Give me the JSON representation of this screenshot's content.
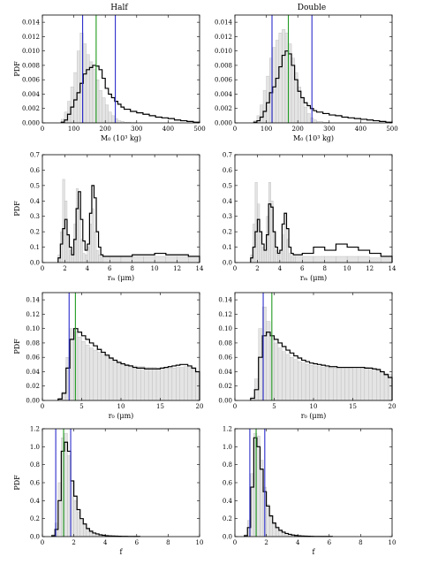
{
  "columns": [
    "Half",
    "Double"
  ],
  "colors": {
    "hist_fill": "#e4e4e4",
    "hist_edge": "#b9b9b9",
    "step": "#000000",
    "blue": "#2b2bcc",
    "green": "#1f9a1f"
  },
  "chart_data": [
    {
      "type": "histogram",
      "column": "Half",
      "ylabel": "PDF",
      "xlabel": "M₀ (10³ kg)",
      "xlim": [
        0,
        500
      ],
      "ylim": [
        0,
        0.015
      ],
      "xticks": [
        "0",
        "100",
        "200",
        "300",
        "400",
        "500"
      ],
      "yticks": [
        "0.000",
        "0.002",
        "0.004",
        "0.006",
        "0.008",
        "0.010",
        "0.012",
        "0.014"
      ],
      "bins": [
        60,
        70,
        80,
        90,
        100,
        110,
        120,
        130,
        140,
        150,
        160,
        170,
        180,
        190,
        200,
        210,
        220,
        230,
        240,
        250,
        260,
        280,
        300,
        320,
        340,
        360,
        380,
        400,
        420,
        440,
        460,
        480,
        500
      ],
      "filled": [
        0.0005,
        0.0015,
        0.003,
        0.005,
        0.007,
        0.01,
        0.0125,
        0.011,
        0.0095,
        0.0085,
        0.0075,
        0.006,
        0.0045,
        0.0035,
        0.0025,
        0.0015,
        0.001,
        0.0006,
        0.0003,
        0.0002,
        0.0001,
        5e-05,
        0.0,
        0.0,
        0.0,
        0.0,
        0.0,
        0.0,
        0.0,
        0.0,
        0.0,
        0.0
      ],
      "step": [
        0.0001,
        0.0004,
        0.0012,
        0.0022,
        0.0032,
        0.0042,
        0.0055,
        0.0068,
        0.0074,
        0.0077,
        0.008,
        0.0079,
        0.0074,
        0.0062,
        0.0048,
        0.004,
        0.0035,
        0.003,
        0.0026,
        0.0022,
        0.0019,
        0.0016,
        0.0014,
        0.0012,
        0.001,
        0.0008,
        0.0007,
        0.0006,
        0.0004,
        0.0003,
        0.0002,
        0.0001
      ],
      "vlines": [
        {
          "x": 128,
          "color": "blue"
        },
        {
          "x": 171,
          "color": "green"
        },
        {
          "x": 232,
          "color": "blue"
        }
      ]
    },
    {
      "type": "histogram",
      "column": "Double",
      "ylabel": "",
      "xlabel": "M₀ (10³ kg)",
      "xlim": [
        0,
        500
      ],
      "ylim": [
        0,
        0.015
      ],
      "xticks": [
        "0",
        "100",
        "200",
        "300",
        "400",
        "500"
      ],
      "yticks": [
        "0.000",
        "0.002",
        "0.004",
        "0.006",
        "0.008",
        "0.010",
        "0.012",
        "0.014"
      ],
      "bins": [
        60,
        70,
        80,
        90,
        100,
        110,
        120,
        130,
        140,
        150,
        160,
        170,
        180,
        190,
        200,
        210,
        220,
        230,
        240,
        250,
        260,
        280,
        300,
        320,
        340,
        360,
        380,
        400,
        420,
        440,
        460,
        480,
        500
      ],
      "filled": [
        0.0003,
        0.001,
        0.0025,
        0.0045,
        0.0065,
        0.009,
        0.0105,
        0.0115,
        0.0125,
        0.013,
        0.0125,
        0.011,
        0.009,
        0.007,
        0.005,
        0.0035,
        0.0022,
        0.0013,
        0.0007,
        0.0004,
        0.0002,
        0.0001,
        0.0,
        0.0,
        0.0,
        0.0,
        0.0,
        0.0,
        0.0,
        0.0,
        0.0,
        0.0
      ],
      "step": [
        0.0001,
        0.0003,
        0.0008,
        0.0016,
        0.0028,
        0.0042,
        0.005,
        0.0062,
        0.0078,
        0.0094,
        0.01,
        0.0096,
        0.008,
        0.006,
        0.0044,
        0.0035,
        0.0028,
        0.0024,
        0.002,
        0.0017,
        0.0015,
        0.0013,
        0.0011,
        0.001,
        0.0008,
        0.0007,
        0.0006,
        0.0005,
        0.0004,
        0.0003,
        0.0002,
        0.0001
      ],
      "vlines": [
        {
          "x": 118,
          "color": "blue"
        },
        {
          "x": 170,
          "color": "green"
        },
        {
          "x": 245,
          "color": "blue"
        }
      ]
    },
    {
      "type": "histogram",
      "column": "Half",
      "ylabel": "PDF",
      "xlabel": "rₘ (μm)",
      "xlim": [
        0,
        14
      ],
      "ylim": [
        0,
        0.7
      ],
      "xticks": [
        "0",
        "2",
        "4",
        "6",
        "8",
        "10",
        "12",
        "14"
      ],
      "yticks": [
        "0.0",
        "0.1",
        "0.2",
        "0.3",
        "0.4",
        "0.5",
        "0.6",
        "0.7"
      ],
      "bins": [
        1.4,
        1.6,
        1.8,
        2.0,
        2.2,
        2.4,
        2.6,
        2.8,
        3.0,
        3.2,
        3.4,
        3.6,
        3.8,
        4.0,
        4.2,
        4.4,
        4.6,
        4.8,
        5.0,
        5.2,
        5.4,
        6.0,
        7.0,
        8.0,
        9.0,
        10.0,
        11.0,
        12.0,
        13.0,
        14.0
      ],
      "filled": [
        0.05,
        0.2,
        0.54,
        0.4,
        0.18,
        0.08,
        0.05,
        0.25,
        0.48,
        0.35,
        0.15,
        0.06,
        0.05,
        0.1,
        0.25,
        0.35,
        0.2,
        0.08,
        0.05,
        0.04,
        0.04,
        0.04,
        0.04,
        0.04,
        0.04,
        0.04,
        0.04,
        0.04,
        0.03
      ],
      "step": [
        0.03,
        0.12,
        0.22,
        0.28,
        0.18,
        0.1,
        0.05,
        0.15,
        0.35,
        0.46,
        0.28,
        0.14,
        0.08,
        0.12,
        0.32,
        0.5,
        0.42,
        0.2,
        0.1,
        0.05,
        0.04,
        0.04,
        0.04,
        0.05,
        0.05,
        0.06,
        0.05,
        0.05,
        0.04
      ],
      "vlines": []
    },
    {
      "type": "histogram",
      "column": "Double",
      "ylabel": "",
      "xlabel": "rₘ (μm)",
      "xlim": [
        0,
        14
      ],
      "ylim": [
        0,
        0.7
      ],
      "xticks": [
        "0",
        "2",
        "4",
        "6",
        "8",
        "10",
        "12",
        "14"
      ],
      "yticks": [
        "0.0",
        "0.1",
        "0.2",
        "0.3",
        "0.4",
        "0.5",
        "0.6",
        "0.7"
      ],
      "bins": [
        1.4,
        1.6,
        1.8,
        2.0,
        2.2,
        2.4,
        2.6,
        2.8,
        3.0,
        3.2,
        3.4,
        3.6,
        3.8,
        4.0,
        4.2,
        4.4,
        4.6,
        4.8,
        5.0,
        5.2,
        5.4,
        6.0,
        7.0,
        8.0,
        9.0,
        10.0,
        11.0,
        12.0,
        13.0,
        14.0
      ],
      "filled": [
        0.05,
        0.25,
        0.52,
        0.38,
        0.2,
        0.1,
        0.08,
        0.3,
        0.52,
        0.4,
        0.2,
        0.08,
        0.05,
        0.08,
        0.18,
        0.25,
        0.15,
        0.06,
        0.04,
        0.04,
        0.04,
        0.04,
        0.04,
        0.04,
        0.04,
        0.04,
        0.04,
        0.03,
        0.03
      ],
      "step": [
        0.03,
        0.1,
        0.2,
        0.28,
        0.2,
        0.12,
        0.08,
        0.18,
        0.38,
        0.36,
        0.2,
        0.1,
        0.06,
        0.08,
        0.25,
        0.32,
        0.22,
        0.1,
        0.06,
        0.05,
        0.05,
        0.06,
        0.1,
        0.08,
        0.12,
        0.1,
        0.08,
        0.06,
        0.04
      ],
      "vlines": []
    },
    {
      "type": "histogram",
      "column": "Half",
      "ylabel": "PDF",
      "xlabel": "r₀ (μm)",
      "xlim": [
        0,
        20
      ],
      "ylim": [
        0,
        0.15
      ],
      "xticks": [
        "0",
        "5",
        "10",
        "15",
        "20"
      ],
      "yticks": [
        "0.00",
        "0.02",
        "0.04",
        "0.06",
        "0.08",
        "0.10",
        "0.12",
        "0.14"
      ],
      "bins": [
        2.0,
        2.5,
        3.0,
        3.5,
        4.0,
        4.5,
        5.0,
        5.5,
        6.0,
        6.5,
        7.0,
        7.5,
        8.0,
        8.5,
        9.0,
        9.5,
        10.0,
        10.5,
        11.0,
        11.5,
        12.0,
        12.5,
        13.0,
        13.5,
        14.0,
        14.5,
        15.0,
        15.5,
        16.0,
        16.5,
        17.0,
        17.5,
        18.0,
        18.5,
        19.0,
        19.5,
        20.0
      ],
      "filled": [
        0.003,
        0.012,
        0.06,
        0.1,
        0.095,
        0.088,
        0.082,
        0.077,
        0.073,
        0.07,
        0.067,
        0.064,
        0.061,
        0.058,
        0.055,
        0.053,
        0.051,
        0.05,
        0.049,
        0.048,
        0.047,
        0.047,
        0.046,
        0.046,
        0.046,
        0.045,
        0.045,
        0.045,
        0.045,
        0.045,
        0.046,
        0.046,
        0.047,
        0.046,
        0.044,
        0.04
      ],
      "step": [
        0.002,
        0.01,
        0.045,
        0.085,
        0.1,
        0.095,
        0.09,
        0.085,
        0.08,
        0.076,
        0.071,
        0.067,
        0.063,
        0.059,
        0.056,
        0.053,
        0.051,
        0.049,
        0.048,
        0.046,
        0.045,
        0.045,
        0.044,
        0.044,
        0.044,
        0.044,
        0.045,
        0.046,
        0.047,
        0.048,
        0.049,
        0.05,
        0.05,
        0.048,
        0.045,
        0.04
      ],
      "vlines": [
        {
          "x": 3.4,
          "color": "blue"
        },
        {
          "x": 4.2,
          "color": "green"
        }
      ]
    },
    {
      "type": "histogram",
      "column": "Double",
      "ylabel": "",
      "xlabel": "r₀ (μm)",
      "xlim": [
        0,
        20
      ],
      "ylim": [
        0,
        0.15
      ],
      "xticks": [
        "0",
        "5",
        "10",
        "15",
        "20"
      ],
      "yticks": [
        "0.00",
        "0.02",
        "0.04",
        "0.06",
        "0.08",
        "0.10",
        "0.12",
        "0.14"
      ],
      "bins": [
        2.0,
        2.5,
        3.0,
        3.5,
        4.0,
        4.5,
        5.0,
        5.5,
        6.0,
        6.5,
        7.0,
        7.5,
        8.0,
        8.5,
        9.0,
        9.5,
        10.0,
        10.5,
        11.0,
        11.5,
        12.0,
        12.5,
        13.0,
        13.5,
        14.0,
        14.5,
        15.0,
        15.5,
        16.0,
        16.5,
        17.0,
        17.5,
        18.0,
        18.5,
        19.0,
        19.5,
        20.0
      ],
      "filled": [
        0.005,
        0.03,
        0.1,
        0.13,
        0.11,
        0.09,
        0.08,
        0.073,
        0.068,
        0.064,
        0.06,
        0.057,
        0.054,
        0.052,
        0.05,
        0.049,
        0.048,
        0.047,
        0.046,
        0.046,
        0.045,
        0.045,
        0.045,
        0.045,
        0.045,
        0.045,
        0.046,
        0.046,
        0.046,
        0.046,
        0.045,
        0.044,
        0.042,
        0.04,
        0.038,
        0.036
      ],
      "step": [
        0.003,
        0.015,
        0.06,
        0.09,
        0.095,
        0.09,
        0.085,
        0.08,
        0.075,
        0.07,
        0.066,
        0.062,
        0.059,
        0.056,
        0.054,
        0.052,
        0.051,
        0.05,
        0.049,
        0.048,
        0.047,
        0.047,
        0.046,
        0.046,
        0.046,
        0.046,
        0.046,
        0.046,
        0.046,
        0.045,
        0.045,
        0.044,
        0.043,
        0.04,
        0.036,
        0.032
      ],
      "vlines": [
        {
          "x": 3.6,
          "color": "blue"
        },
        {
          "x": 4.7,
          "color": "green"
        }
      ]
    },
    {
      "type": "histogram",
      "column": "Half",
      "ylabel": "PDF",
      "xlabel": "f",
      "xlim": [
        0,
        10
      ],
      "ylim": [
        0,
        1.2
      ],
      "xticks": [
        "0",
        "2",
        "4",
        "6",
        "8",
        "10"
      ],
      "yticks": [
        "0.0",
        "0.2",
        "0.4",
        "0.6",
        "0.8",
        "1.0",
        "1.2"
      ],
      "bins": [
        0.6,
        0.8,
        1.0,
        1.2,
        1.4,
        1.6,
        1.8,
        2.0,
        2.2,
        2.4,
        2.6,
        2.8,
        3.0,
        3.2,
        3.4,
        3.6,
        3.8,
        4.0,
        4.2,
        4.4,
        4.6,
        4.8,
        5.0,
        5.4,
        5.8,
        6.2
      ],
      "filled": [
        0.02,
        0.15,
        0.6,
        1.1,
        1.15,
        0.9,
        0.6,
        0.4,
        0.27,
        0.18,
        0.12,
        0.08,
        0.05,
        0.04,
        0.03,
        0.02,
        0.015,
        0.01,
        0.008,
        0.006,
        0.005,
        0.004,
        0.003,
        0.002,
        0.001
      ],
      "step": [
        0.01,
        0.08,
        0.4,
        0.95,
        1.05,
        0.95,
        0.62,
        0.45,
        0.3,
        0.2,
        0.14,
        0.09,
        0.06,
        0.04,
        0.03,
        0.02,
        0.015,
        0.01,
        0.008,
        0.006,
        0.005,
        0.004,
        0.003,
        0.002,
        0.001
      ],
      "vlines": [
        {
          "x": 0.85,
          "color": "blue"
        },
        {
          "x": 1.35,
          "color": "green"
        },
        {
          "x": 1.8,
          "color": "blue"
        }
      ]
    },
    {
      "type": "histogram",
      "column": "Double",
      "ylabel": "",
      "xlabel": "f",
      "xlim": [
        0,
        10
      ],
      "ylim": [
        0,
        1.2
      ],
      "xticks": [
        "0",
        "2",
        "4",
        "6",
        "8",
        "10"
      ],
      "yticks": [
        "0.0",
        "0.2",
        "0.4",
        "0.6",
        "0.8",
        "1.0",
        "1.2"
      ],
      "bins": [
        0.6,
        0.8,
        1.0,
        1.2,
        1.4,
        1.6,
        1.8,
        2.0,
        2.2,
        2.4,
        2.6,
        2.8,
        3.0,
        3.2,
        3.4,
        3.6,
        3.8,
        4.0,
        4.2,
        4.4,
        4.6,
        4.8,
        5.0,
        5.4,
        5.8,
        6.2
      ],
      "filled": [
        0.02,
        0.18,
        0.7,
        1.15,
        1.12,
        0.85,
        0.55,
        0.36,
        0.24,
        0.16,
        0.11,
        0.07,
        0.05,
        0.035,
        0.025,
        0.018,
        0.012,
        0.009,
        0.007,
        0.005,
        0.004,
        0.003,
        0.002,
        0.001,
        0.001
      ],
      "step": [
        0.01,
        0.1,
        0.55,
        1.1,
        1.0,
        0.75,
        0.5,
        0.34,
        0.23,
        0.15,
        0.1,
        0.07,
        0.05,
        0.035,
        0.025,
        0.018,
        0.012,
        0.009,
        0.007,
        0.005,
        0.004,
        0.003,
        0.002,
        0.001,
        0.001
      ],
      "vlines": [
        {
          "x": 0.95,
          "color": "blue"
        },
        {
          "x": 1.35,
          "color": "green"
        },
        {
          "x": 1.9,
          "color": "blue"
        }
      ]
    }
  ]
}
